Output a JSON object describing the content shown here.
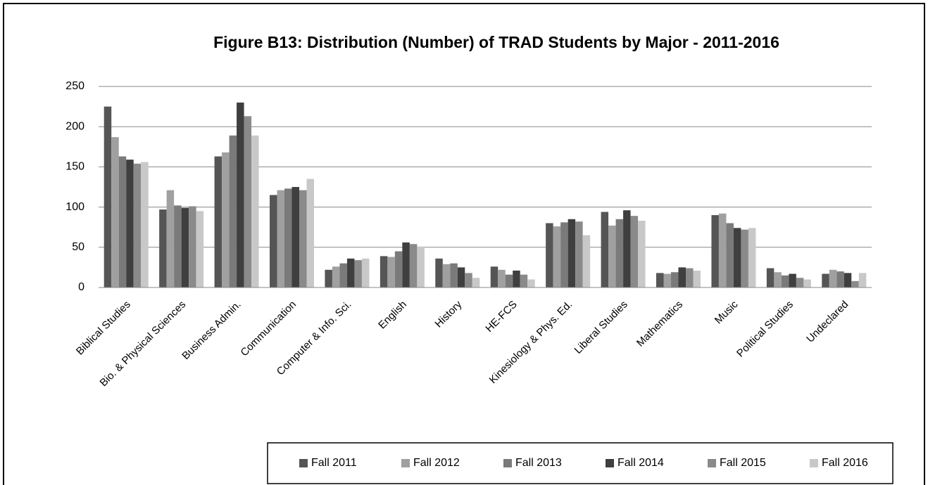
{
  "chart_data": {
    "type": "bar",
    "title": "Figure B13: Distribution (Number) of TRAD Students by Major - 2011-2016",
    "categories": [
      "Biblical Studies",
      "Bio. & Physical Sciences",
      "Business Admin.",
      "Communication",
      "Computer & Info. Sci.",
      "English",
      "History",
      "HE-FCS",
      "Kinesiology & Phys. Ed.",
      "Liberal Studies",
      "Mathematics",
      "Music",
      "Political Studies",
      "Undeclared"
    ],
    "series": [
      {
        "name": "Fall 2011",
        "color": "#555555",
        "values": [
          225,
          97,
          163,
          115,
          22,
          39,
          36,
          26,
          80,
          94,
          18,
          90,
          24,
          17
        ]
      },
      {
        "name": "Fall 2012",
        "color": "#a0a0a0",
        "values": [
          187,
          121,
          168,
          121,
          26,
          38,
          29,
          22,
          76,
          77,
          17,
          92,
          19,
          22
        ]
      },
      {
        "name": "Fall 2013",
        "color": "#7a7a7a",
        "values": [
          163,
          102,
          189,
          123,
          30,
          45,
          30,
          16,
          81,
          85,
          19,
          80,
          15,
          20
        ]
      },
      {
        "name": "Fall 2014",
        "color": "#3f3f3f",
        "values": [
          159,
          99,
          230,
          125,
          36,
          56,
          25,
          21,
          85,
          96,
          25,
          74,
          17,
          18
        ]
      },
      {
        "name": "Fall 2015",
        "color": "#8a8a8a",
        "values": [
          154,
          101,
          213,
          121,
          34,
          54,
          18,
          16,
          82,
          89,
          24,
          72,
          12,
          8
        ]
      },
      {
        "name": "Fall 2016",
        "color": "#c8c8c8",
        "values": [
          156,
          95,
          189,
          135,
          36,
          51,
          12,
          10,
          65,
          83,
          21,
          74,
          10,
          18
        ]
      }
    ],
    "ylim": [
      0,
      250
    ],
    "yticks": [
      0,
      50,
      100,
      150,
      200,
      250
    ],
    "grid": true,
    "legend": "bottom"
  }
}
